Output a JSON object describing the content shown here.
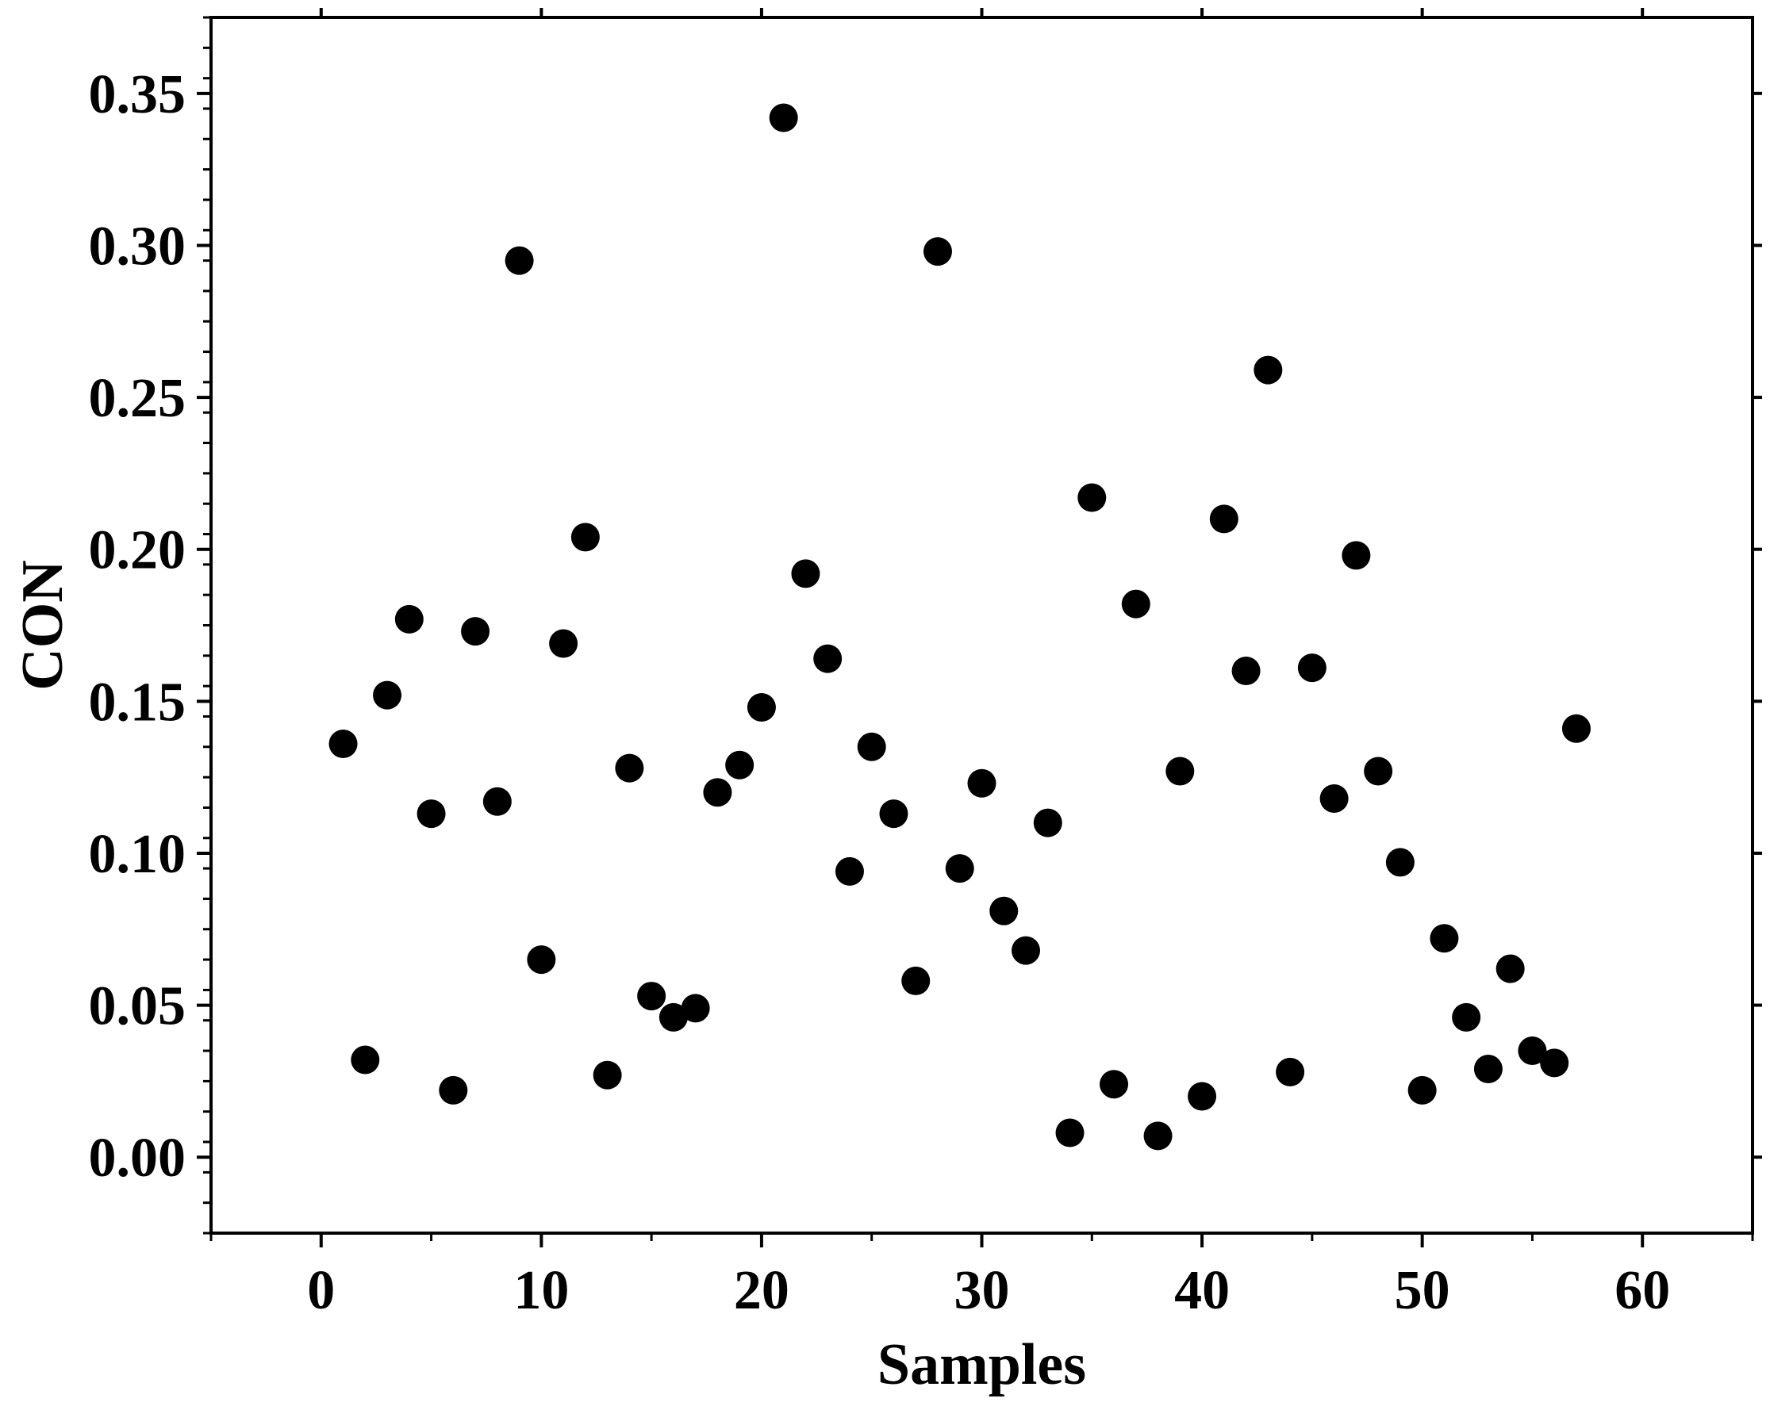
{
  "chart_data": {
    "type": "scatter",
    "title": "",
    "xlabel": "Samples",
    "ylabel": "CON",
    "xlim": [
      -5,
      65
    ],
    "ylim": [
      -0.025,
      0.375
    ],
    "xticks": [
      0,
      10,
      20,
      30,
      40,
      50,
      60
    ],
    "xtick_labels": [
      "0",
      "10",
      "20",
      "30",
      "40",
      "50",
      "60"
    ],
    "yticks": [
      0.0,
      0.05,
      0.1,
      0.15,
      0.2,
      0.25,
      0.3,
      0.35
    ],
    "ytick_labels": [
      "0.00",
      "0.05",
      "0.10",
      "0.15",
      "0.20",
      "0.25",
      "0.30",
      "0.35"
    ],
    "grid": false,
    "legend": "none",
    "marker_color": "#000000",
    "series": [
      {
        "x": [
          1,
          2,
          3,
          4,
          5,
          6,
          7,
          8,
          9,
          10,
          11,
          12,
          13,
          14,
          15,
          16,
          17,
          18,
          19,
          20,
          21,
          22,
          23,
          24,
          25,
          26,
          27,
          28,
          29,
          30,
          31,
          32,
          33,
          34,
          35,
          36,
          37,
          38,
          39,
          40,
          41,
          42,
          43,
          44,
          45,
          46,
          47,
          48,
          49,
          50,
          51,
          52,
          53,
          54,
          55,
          56,
          57
        ],
        "y": [
          0.136,
          0.032,
          0.152,
          0.177,
          0.113,
          0.022,
          0.173,
          0.117,
          0.295,
          0.065,
          0.169,
          0.204,
          0.027,
          0.128,
          0.053,
          0.046,
          0.049,
          0.12,
          0.129,
          0.148,
          0.342,
          0.192,
          0.164,
          0.094,
          0.135,
          0.113,
          0.058,
          0.298,
          0.095,
          0.123,
          0.081,
          0.068,
          0.11,
          0.008,
          0.217,
          0.024,
          0.182,
          0.007,
          0.127,
          0.02,
          0.21,
          0.16,
          0.259,
          0.028,
          0.161,
          0.118,
          0.198,
          0.127,
          0.097,
          0.022,
          0.072,
          0.046,
          0.029,
          0.062,
          0.035,
          0.031,
          0.141
        ]
      }
    ]
  }
}
